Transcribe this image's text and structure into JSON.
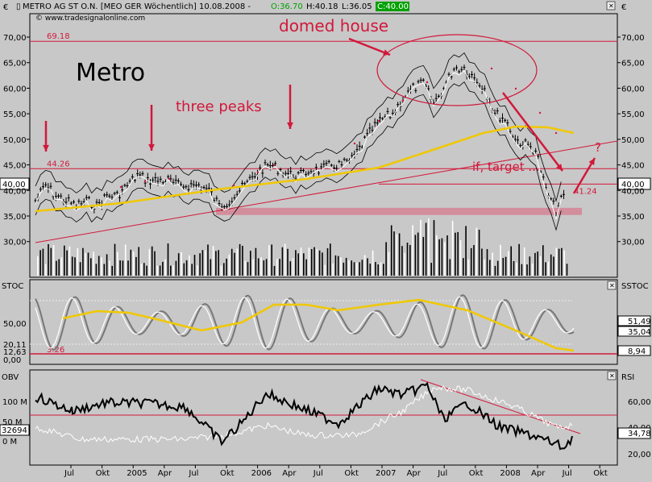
{
  "header": {
    "currency": "€",
    "title": "METRO AG ST O.N. [MEO GER  Wöchentlich] 10.08.2008 -",
    "open": "O:36.70",
    "high": "H:40.18",
    "low": "L:36.05",
    "close": "C:40.00",
    "source": "© www.tradesignalonline.com"
  },
  "colors": {
    "background": "#c8c8c8",
    "annotation_red": "#d2183a",
    "open_green": "#00a000",
    "gold": "#f0c800",
    "price_box_bg": "#ffffff"
  },
  "chart_data": [
    {
      "type": "line",
      "panel": "price",
      "yticks": [
        "70,00",
        "65,00",
        "60,00",
        "55,00",
        "50,00",
        "45,00",
        "40,00",
        "35,00",
        "30,00"
      ],
      "ylim": [
        25,
        72
      ],
      "xticks": [
        "Jul",
        "Okt",
        "2005",
        "Apr",
        "Jul",
        "Okt",
        "2006",
        "Apr",
        "Jul",
        "Okt",
        "2007",
        "Apr",
        "Jul",
        "Okt",
        "2008",
        "Apr",
        "Jul",
        "Okt"
      ],
      "last_price_label": "40,00",
      "levels": [
        {
          "label": "69.18",
          "value": 69.18
        },
        {
          "label": "44.26",
          "value": 44.26
        },
        {
          "label": "41.24",
          "value": 41.24
        }
      ],
      "price_series": [
        {
          "t": "2004-04",
          "v": 38
        },
        {
          "t": "2004-05",
          "v": 41
        },
        {
          "t": "2004-06",
          "v": 39
        },
        {
          "t": "2004-07",
          "v": 38
        },
        {
          "t": "2004-08",
          "v": 37
        },
        {
          "t": "2004-09",
          "v": 38
        },
        {
          "t": "2004-10",
          "v": 37
        },
        {
          "t": "2004-11",
          "v": 39
        },
        {
          "t": "2004-12",
          "v": 39
        },
        {
          "t": "2005-01",
          "v": 41
        },
        {
          "t": "2005-02",
          "v": 43
        },
        {
          "t": "2005-03",
          "v": 42
        },
        {
          "t": "2005-04",
          "v": 42
        },
        {
          "t": "2005-05",
          "v": 42
        },
        {
          "t": "2005-06",
          "v": 41
        },
        {
          "t": "2005-07",
          "v": 41
        },
        {
          "t": "2005-08",
          "v": 41
        },
        {
          "t": "2005-09",
          "v": 40
        },
        {
          "t": "2005-10",
          "v": 37
        },
        {
          "t": "2005-11",
          "v": 38
        },
        {
          "t": "2005-12",
          "v": 40
        },
        {
          "t": "2006-01",
          "v": 42
        },
        {
          "t": "2006-02",
          "v": 44
        },
        {
          "t": "2006-03",
          "v": 45
        },
        {
          "t": "2006-04",
          "v": 44
        },
        {
          "t": "2006-05",
          "v": 43
        },
        {
          "t": "2006-06",
          "v": 43
        },
        {
          "t": "2006-07",
          "v": 44
        },
        {
          "t": "2006-08",
          "v": 44
        },
        {
          "t": "2006-09",
          "v": 45
        },
        {
          "t": "2006-10",
          "v": 45
        },
        {
          "t": "2006-11",
          "v": 46
        },
        {
          "t": "2006-12",
          "v": 49
        },
        {
          "t": "2007-01",
          "v": 52
        },
        {
          "t": "2007-02",
          "v": 54
        },
        {
          "t": "2007-03",
          "v": 55
        },
        {
          "t": "2007-04",
          "v": 58
        },
        {
          "t": "2007-05",
          "v": 60
        },
        {
          "t": "2007-06",
          "v": 61
        },
        {
          "t": "2007-07",
          "v": 57
        },
        {
          "t": "2007-08",
          "v": 60
        },
        {
          "t": "2007-09",
          "v": 64
        },
        {
          "t": "2007-10",
          "v": 64
        },
        {
          "t": "2007-11",
          "v": 62
        },
        {
          "t": "2007-12",
          "v": 60
        },
        {
          "t": "2008-01",
          "v": 55
        },
        {
          "t": "2008-02",
          "v": 54
        },
        {
          "t": "2008-03",
          "v": 50
        },
        {
          "t": "2008-04",
          "v": 49
        },
        {
          "t": "2008-05",
          "v": 48
        },
        {
          "t": "2008-06",
          "v": 40
        },
        {
          "t": "2008-07",
          "v": 36
        },
        {
          "t": "2008-08",
          "v": 40
        }
      ]
    },
    {
      "type": "line",
      "panel": "stochastic",
      "left_label": "STOC",
      "right_label": "SSTOC",
      "yticks": [
        "50,00",
        "20,11",
        "12,63",
        "0,00"
      ],
      "right_values": [
        "51,49",
        "35,04",
        "8,94"
      ],
      "level_label": "3.26"
    },
    {
      "type": "line",
      "panel": "obv_rsi",
      "left_label": "OBV",
      "right_label": "RSI",
      "left_ticks": [
        "100 M",
        "50 M",
        "0 M"
      ],
      "obv_last": "32694",
      "right_ticks": [
        "60,00",
        "40,00",
        "20,00"
      ],
      "rsi_last": "34,78"
    }
  ],
  "annotations": {
    "name": "Metro",
    "domed_house": "domed house",
    "three_peaks": "three peaks",
    "target": "if, target ...",
    "question": "?"
  }
}
